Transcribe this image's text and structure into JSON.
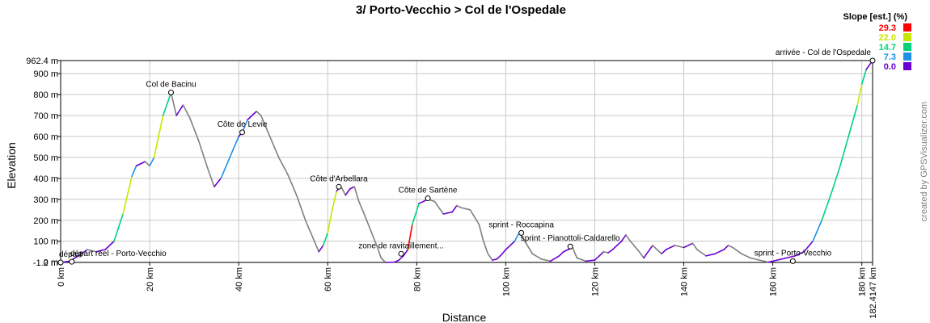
{
  "chart_data": {
    "type": "line",
    "title": "3/ Porto-Vecchio > Col de l'Ospedale",
    "xlabel": "Distance",
    "ylabel": "Elevation",
    "xlim": [
      0,
      182.4147
    ],
    "ylim": [
      -1.2,
      962.4
    ],
    "x_ticks": [
      0,
      20,
      40,
      60,
      80,
      100,
      120,
      140,
      160,
      180,
      182.4147
    ],
    "x_tick_labels": [
      "0 km",
      "20 km",
      "40 km",
      "60 km",
      "80 km",
      "100 km",
      "120 km",
      "140 km",
      "160 km",
      "180 km",
      "182.4147 km"
    ],
    "y_ticks": [
      -1.2,
      0,
      100,
      200,
      300,
      400,
      500,
      600,
      700,
      800,
      900,
      962.4
    ],
    "y_tick_labels": [
      "-1.2 m",
      "0 m",
      "100 m",
      "200 m",
      "300 m",
      "400 m",
      "500 m",
      "600 m",
      "700 m",
      "800 m",
      "900 m",
      "962.4 m"
    ],
    "grid": true,
    "legend": {
      "title": "Slope [est.] (%)",
      "placement": "top-right",
      "entries": [
        {
          "label": "29.3",
          "color": "#ff0000"
        },
        {
          "label": "22.0",
          "color": "#c8e600"
        },
        {
          "label": "14.7",
          "color": "#00d27d"
        },
        {
          "label": "7.3",
          "color": "#1e90e6"
        },
        {
          "label": "0.0",
          "color": "#6a00d2"
        }
      ]
    },
    "series": [
      {
        "profile": [
          [
            0,
            -1.2
          ],
          [
            2,
            5
          ],
          [
            4,
            30
          ],
          [
            6,
            60
          ],
          [
            8,
            50
          ],
          [
            10,
            60
          ],
          [
            12,
            100
          ],
          [
            14,
            230
          ],
          [
            16,
            410
          ],
          [
            17,
            460
          ],
          [
            18,
            470
          ],
          [
            19,
            480
          ],
          [
            20,
            460
          ],
          [
            21,
            500
          ],
          [
            22,
            600
          ],
          [
            23,
            700
          ],
          [
            24,
            760
          ],
          [
            24.8,
            810
          ],
          [
            26,
            700
          ],
          [
            27.5,
            750
          ],
          [
            29,
            690
          ],
          [
            31,
            580
          ],
          [
            33,
            450
          ],
          [
            34.5,
            360
          ],
          [
            36,
            400
          ],
          [
            38,
            500
          ],
          [
            40,
            600
          ],
          [
            40.8,
            620
          ],
          [
            42,
            680
          ],
          [
            44,
            720
          ],
          [
            45,
            700
          ],
          [
            47,
            600
          ],
          [
            49,
            500
          ],
          [
            51,
            420
          ],
          [
            53,
            320
          ],
          [
            55,
            200
          ],
          [
            57,
            100
          ],
          [
            58,
            50
          ],
          [
            59,
            80
          ],
          [
            60,
            140
          ],
          [
            61,
            250
          ],
          [
            62,
            340
          ],
          [
            63,
            360
          ],
          [
            64,
            320
          ],
          [
            65,
            350
          ],
          [
            66,
            360
          ],
          [
            67,
            290
          ],
          [
            68,
            240
          ],
          [
            69.5,
            160
          ],
          [
            71,
            80
          ],
          [
            72,
            20
          ],
          [
            73,
            -1.2
          ],
          [
            75,
            0
          ],
          [
            76,
            10
          ],
          [
            77,
            30
          ],
          [
            78,
            60
          ],
          [
            79,
            180
          ],
          [
            80.5,
            280
          ],
          [
            82.5,
            300
          ],
          [
            84,
            290
          ],
          [
            86,
            230
          ],
          [
            88,
            240
          ],
          [
            89,
            270
          ],
          [
            90,
            260
          ],
          [
            92,
            250
          ],
          [
            94,
            180
          ],
          [
            95,
            100
          ],
          [
            96,
            40
          ],
          [
            97,
            10
          ],
          [
            98,
            15
          ],
          [
            99,
            35
          ],
          [
            100,
            60
          ],
          [
            101,
            80
          ],
          [
            102,
            100
          ],
          [
            103,
            140
          ],
          [
            104,
            110
          ],
          [
            106,
            40
          ],
          [
            108,
            15
          ],
          [
            110,
            5
          ],
          [
            112,
            30
          ],
          [
            113,
            50
          ],
          [
            114,
            60
          ],
          [
            115,
            70
          ],
          [
            116,
            20
          ],
          [
            118,
            5
          ],
          [
            120,
            10
          ],
          [
            121,
            30
          ],
          [
            122,
            50
          ],
          [
            123,
            45
          ],
          [
            124,
            60
          ],
          [
            125,
            80
          ],
          [
            126,
            100
          ],
          [
            127,
            130
          ],
          [
            128,
            100
          ],
          [
            130,
            50
          ],
          [
            131,
            20
          ],
          [
            132,
            50
          ],
          [
            133,
            80
          ],
          [
            134,
            60
          ],
          [
            135,
            40
          ],
          [
            136,
            60
          ],
          [
            138,
            80
          ],
          [
            140,
            70
          ],
          [
            141,
            80
          ],
          [
            142,
            90
          ],
          [
            143,
            60
          ],
          [
            145,
            30
          ],
          [
            147,
            40
          ],
          [
            149,
            60
          ],
          [
            150,
            80
          ],
          [
            151,
            70
          ],
          [
            153,
            40
          ],
          [
            155,
            20
          ],
          [
            157,
            10
          ],
          [
            159,
            0
          ],
          [
            161,
            10
          ],
          [
            163,
            20
          ],
          [
            165,
            30
          ],
          [
            167,
            50
          ],
          [
            169,
            100
          ],
          [
            171,
            200
          ],
          [
            173,
            320
          ],
          [
            175,
            450
          ],
          [
            177,
            600
          ],
          [
            179,
            750
          ],
          [
            180,
            850
          ],
          [
            181,
            920
          ],
          [
            182.4147,
            962.4
          ]
        ]
      }
    ],
    "waypoints": [
      {
        "label": "départ réel - Porto-Vecchio",
        "x": 2.5,
        "y": 2
      },
      {
        "label": "départ",
        "x": 0,
        "y": -1.2
      },
      {
        "label": "Col de Bacinu",
        "x": 24.8,
        "y": 810
      },
      {
        "label": "Côte de Levie",
        "x": 40.8,
        "y": 620
      },
      {
        "label": "Côte d'Arbellara",
        "x": 62.5,
        "y": 360
      },
      {
        "label": "zone de ravitaillement...",
        "x": 76.5,
        "y": 40
      },
      {
        "label": "Côte de Sartène",
        "x": 82.5,
        "y": 305
      },
      {
        "label": "sprint - Roccapina",
        "x": 103.5,
        "y": 140
      },
      {
        "label": "sprint - Pianottoli-Caldarello",
        "x": 114.5,
        "y": 75
      },
      {
        "label": "sprint - Porto-Vecchio",
        "x": 164.5,
        "y": 5
      },
      {
        "label": "arrivée - Col de l'Ospedale",
        "x": 182.4147,
        "y": 962.4
      }
    ],
    "credit": "created by GPSVisualizer.com"
  }
}
